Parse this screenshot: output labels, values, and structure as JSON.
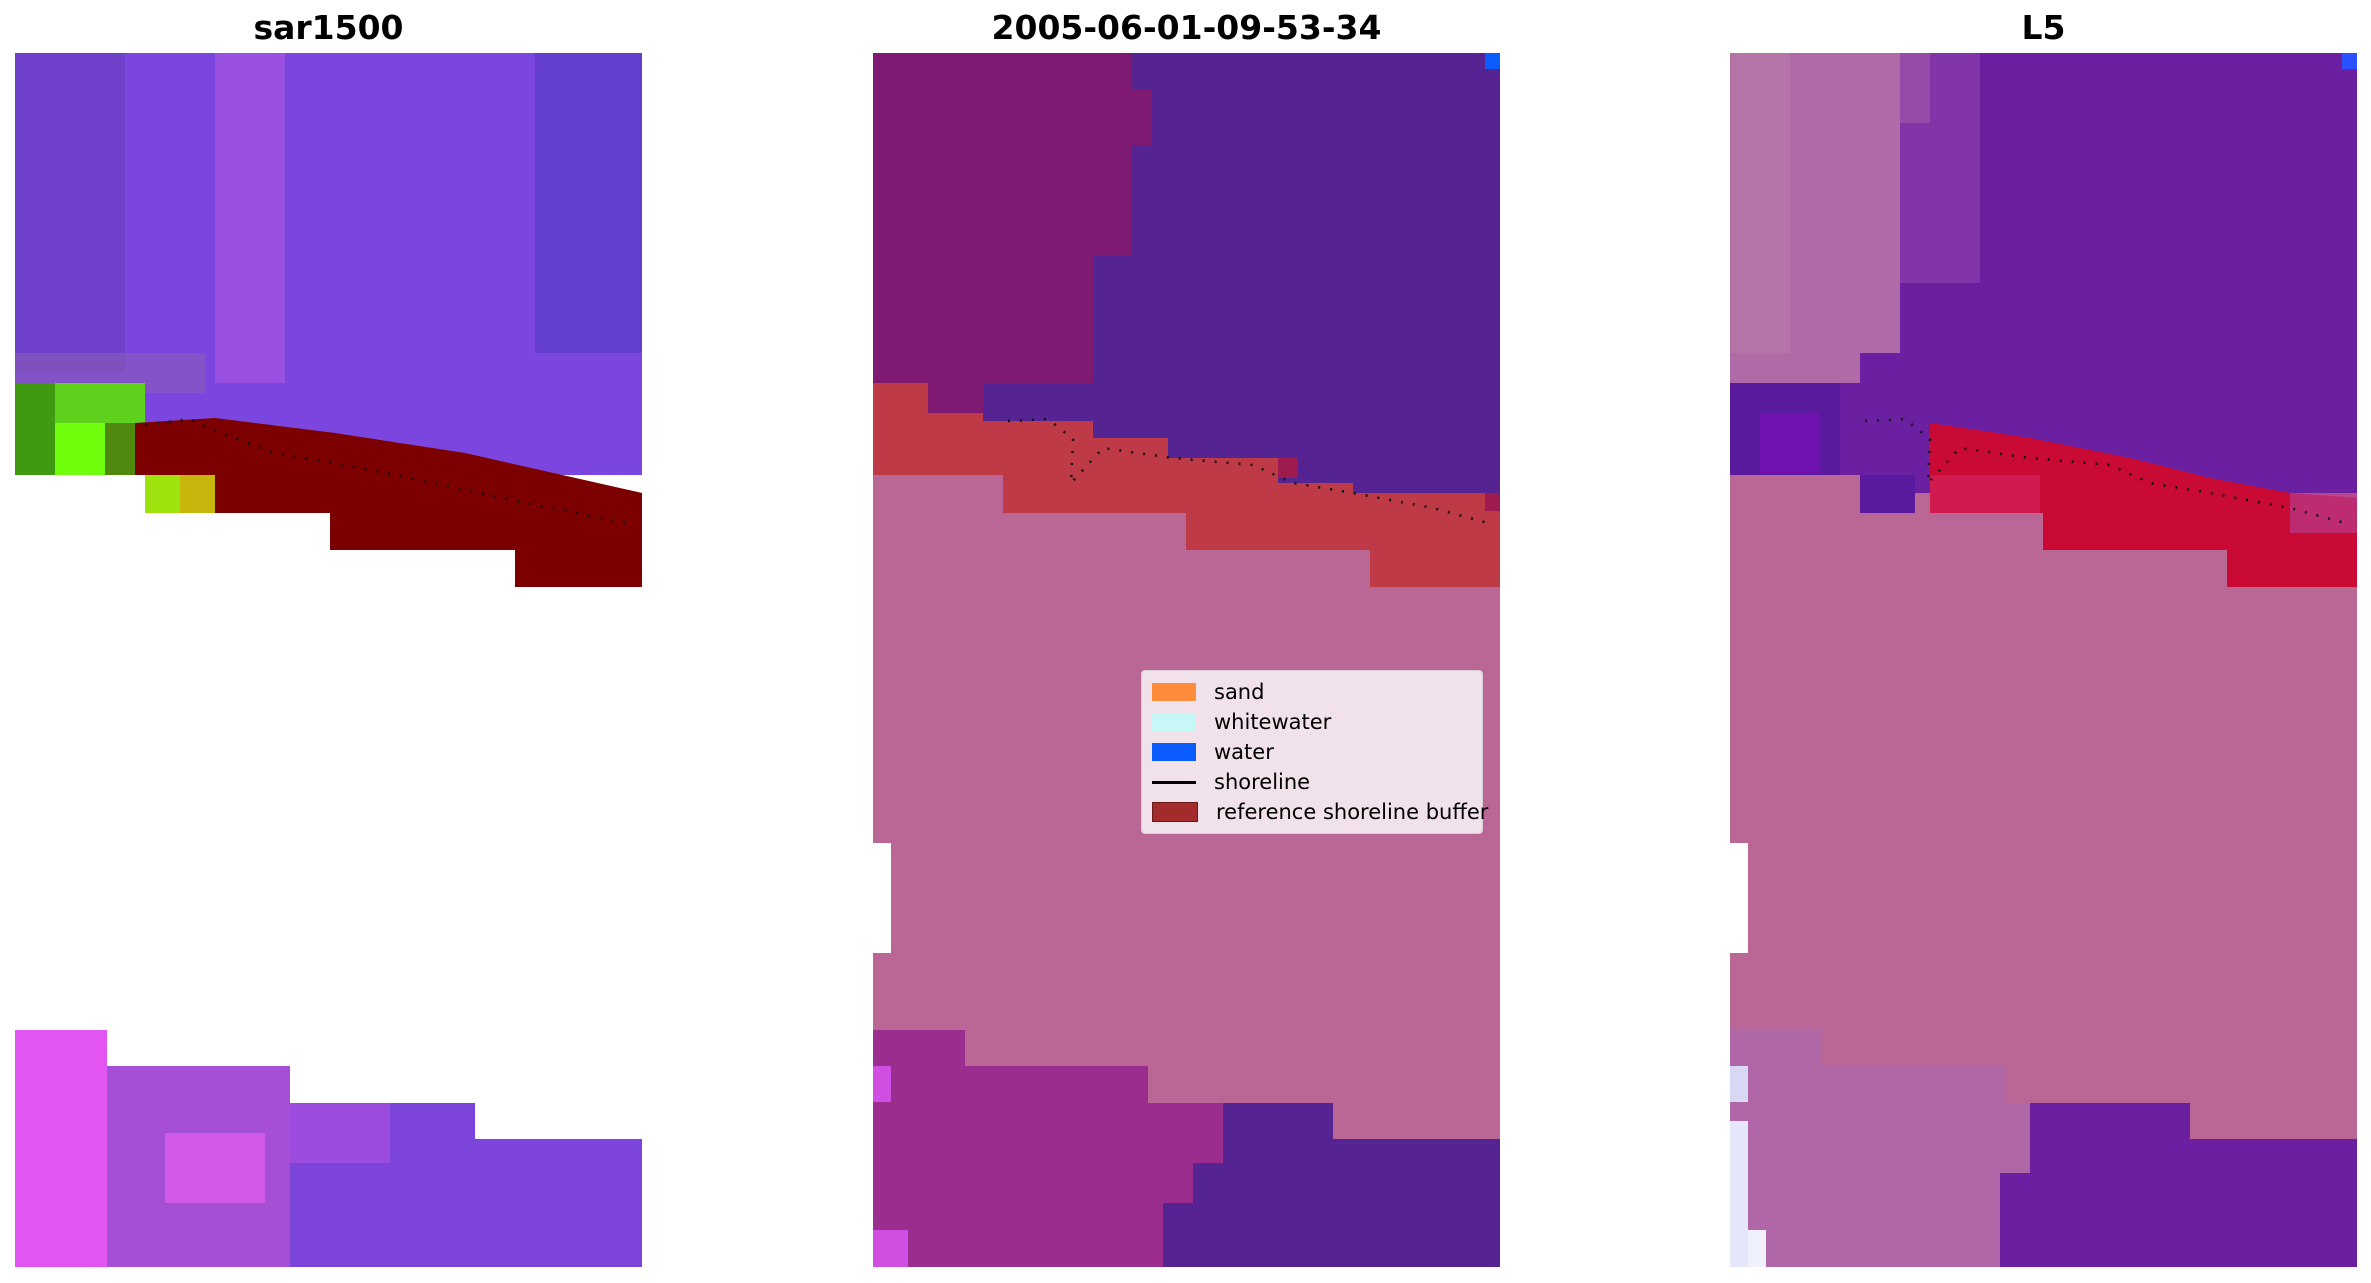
{
  "panels": [
    {
      "title": "sar1500"
    },
    {
      "title": "2005-06-01-09-53-34"
    },
    {
      "title": "L5"
    }
  ],
  "legend": {
    "items": [
      {
        "label": "sand",
        "color": "#ff8c3a",
        "kind": "patch"
      },
      {
        "label": "whitewater",
        "color": "#c8f7f7",
        "kind": "patch"
      },
      {
        "label": "water",
        "color": "#0a5cff",
        "kind": "patch"
      },
      {
        "label": "shoreline",
        "color": "#000000",
        "kind": "line"
      },
      {
        "label": "reference shoreline buffer",
        "color": "#a32b2b",
        "kind": "patch"
      }
    ]
  },
  "colors": {
    "sar_violet": "#7a46df",
    "sar_magenta": "#b055d8",
    "sar_green": "#6fe01a",
    "sar_darkred": "#7d0000",
    "class_purple": "#562393",
    "class_magenta": "#7e1a71",
    "class_pink": "#bb6796",
    "class_red": "#bf3a47",
    "l5_purple": "#6a20a0",
    "l5_pink": "#bb6796",
    "l5_red": "#c90a34"
  }
}
